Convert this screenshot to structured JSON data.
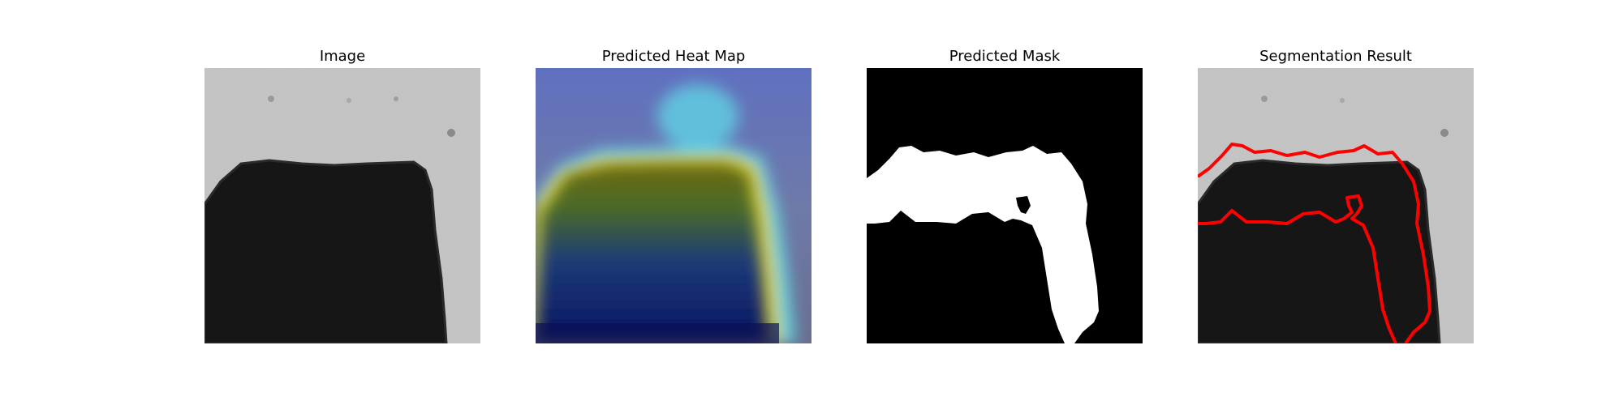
{
  "figure": {
    "panels": [
      {
        "title": "Image"
      },
      {
        "title": "Predicted Heat Map"
      },
      {
        "title": "Predicted Mask"
      },
      {
        "title": "Segmentation Result"
      }
    ],
    "colors": {
      "background_gray": "#c4c4c4",
      "dark_object": "#151515",
      "contour": "#ff0000",
      "mask_white": "#ffffff",
      "mask_black": "#000000"
    }
  }
}
